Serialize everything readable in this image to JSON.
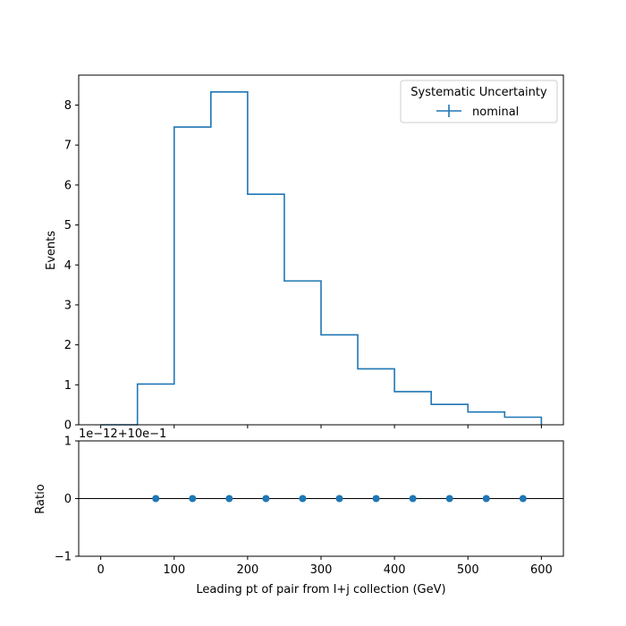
{
  "chart_data": [
    {
      "type": "histogram-step",
      "title": "",
      "xlabel": "",
      "ylabel": "Events",
      "xlim": [
        -30,
        630
      ],
      "ylim": [
        0,
        8.75
      ],
      "bin_edges": [
        0,
        50,
        100,
        150,
        200,
        250,
        300,
        350,
        400,
        450,
        500,
        550,
        600
      ],
      "series": [
        {
          "name": "nominal",
          "color": "#1f77b4",
          "values": [
            0.0,
            1.02,
            7.45,
            8.33,
            5.77,
            3.6,
            2.25,
            1.4,
            0.83,
            0.51,
            0.32,
            0.19
          ]
        }
      ],
      "x_ticks": [
        0,
        100,
        200,
        300,
        400,
        500,
        600
      ],
      "y_ticks": [
        0,
        1,
        2,
        3,
        4,
        5,
        6,
        7,
        8
      ],
      "x_tick_labels_shown": false,
      "legend": {
        "title": "Systematic Uncertainty",
        "placement": "top-right",
        "entries": [
          "nominal"
        ]
      },
      "grid": false
    },
    {
      "type": "scatter",
      "title": "",
      "xlabel": "Leading pt of pair from l+j collection (GeV)",
      "ylabel": "Ratio",
      "offset_label": "1e−12+10e−1",
      "xlim": [
        -30,
        630
      ],
      "ylim": [
        -1,
        1
      ],
      "x_ticks": [
        0,
        100,
        200,
        300,
        400,
        500,
        600
      ],
      "x_tick_labels": [
        "0",
        "100",
        "200",
        "300",
        "400",
        "500",
        "600"
      ],
      "y_ticks": [
        -1,
        0,
        1
      ],
      "y_tick_labels": [
        "−1",
        "0",
        "1"
      ],
      "reference_line": 0,
      "series": [
        {
          "color": "#1f77b4",
          "x": [
            75,
            125,
            175,
            225,
            275,
            325,
            375,
            425,
            475,
            525,
            575
          ],
          "y": [
            0,
            0,
            0,
            0,
            0,
            0,
            0,
            0,
            0,
            0,
            0
          ]
        }
      ],
      "grid": false
    }
  ]
}
